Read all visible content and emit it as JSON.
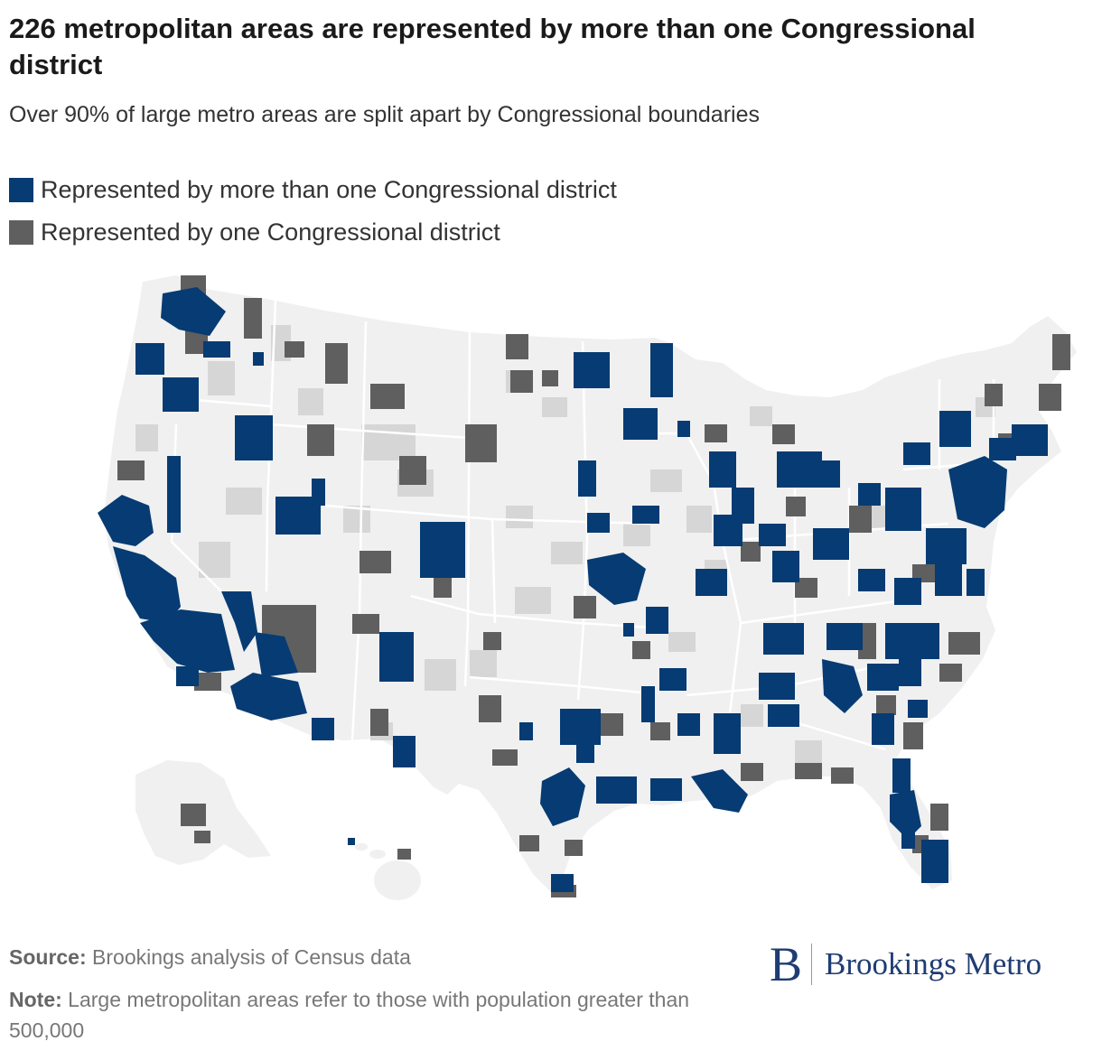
{
  "header": {
    "title": "226 metropolitan areas are represented by more than one Congressional district",
    "subtitle": "Over 90% of large metro areas are split apart by Congressional boundaries"
  },
  "legend": [
    {
      "label": "Represented by more than one Congressional district",
      "color": "#063b73"
    },
    {
      "label": "Represented by one Congressional district",
      "color": "#5f5f5f"
    }
  ],
  "map": {
    "colors": {
      "multi": "#063b73",
      "single": "#5f5f5f",
      "small_metro": "#d6d6d6",
      "land": "#f0f0f0",
      "border": "#ffffff"
    }
  },
  "footer": {
    "source_label": "Source:",
    "source_text": "Brookings analysis of Census data",
    "note_label": "Note:",
    "note_text": "Large metropolitan areas refer to those with population greater than 500,000"
  },
  "brand": {
    "mark": "B",
    "name": "Brookings Metro"
  }
}
